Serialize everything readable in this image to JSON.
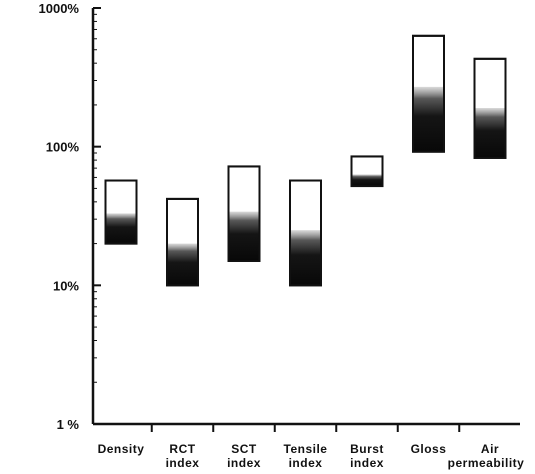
{
  "chart_data": {
    "type": "bar",
    "title": "",
    "xlabel": "",
    "ylabel": "",
    "y_scale": "log",
    "ylim": [
      1,
      1000
    ],
    "y_ticks": [
      {
        "value": 1,
        "label": "1 %"
      },
      {
        "value": 10,
        "label": "10%"
      },
      {
        "value": 100,
        "label": "100%"
      },
      {
        "value": 1000,
        "label": "1000%"
      }
    ],
    "grid": false,
    "categories": [
      {
        "label_line1": "Density",
        "label_line2": "",
        "low": 20,
        "mid": 33,
        "high": 57
      },
      {
        "label_line1": "RCT",
        "label_line2": "index",
        "low": 10,
        "mid": 20,
        "high": 42
      },
      {
        "label_line1": "SCT",
        "label_line2": "index",
        "low": 15,
        "mid": 34,
        "high": 72
      },
      {
        "label_line1": "Tensile",
        "label_line2": "index",
        "low": 10,
        "mid": 25,
        "high": 57
      },
      {
        "label_line1": "Burst",
        "label_line2": "index",
        "low": 52,
        "mid": 63,
        "high": 85
      },
      {
        "label_line1": "Gloss",
        "label_line2": "",
        "low": 92,
        "mid": 270,
        "high": 630
      },
      {
        "label_line1": "Air",
        "label_line2": "permeability",
        "low": 83,
        "mid": 190,
        "high": 430
      }
    ],
    "colors": {
      "dark_fill": "#111111",
      "light_fill": "#ffffff",
      "axis": "#111111"
    }
  }
}
